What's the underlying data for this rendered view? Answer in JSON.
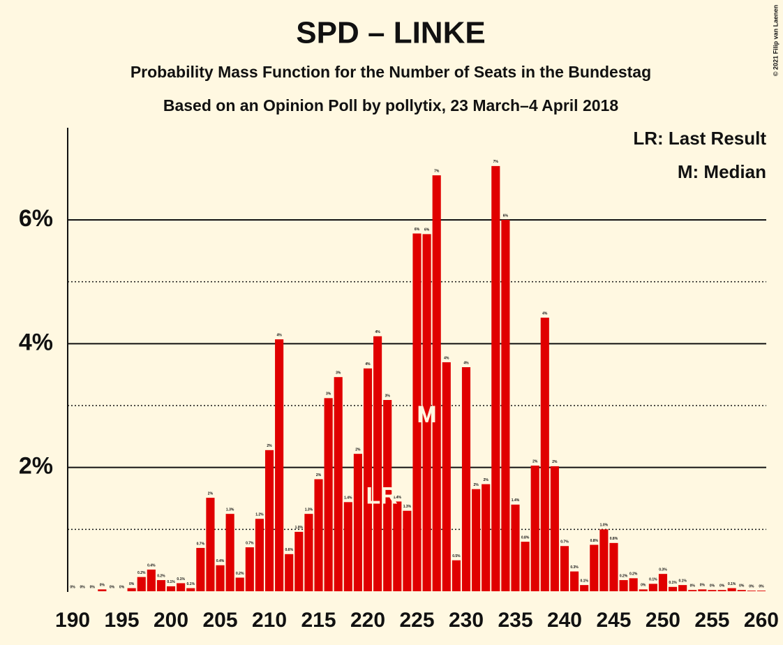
{
  "chart_data": {
    "type": "bar",
    "title": "SPD – LINKE",
    "subtitle": "Probability Mass Function for the Number of Seats in the Bundestag",
    "subtitle2": "Based on an Opinion Poll by pollytix, 23 March–4 April 2018",
    "copyright": "© 2021 Filip van Laenen",
    "legend": [
      "LR: Last Result",
      "M: Median"
    ],
    "color": "#e00000",
    "x": [
      190,
      191,
      192,
      193,
      194,
      195,
      196,
      197,
      198,
      199,
      200,
      201,
      202,
      203,
      204,
      205,
      206,
      207,
      208,
      209,
      210,
      211,
      212,
      213,
      214,
      215,
      216,
      217,
      218,
      219,
      220,
      221,
      222,
      223,
      224,
      225,
      226,
      227,
      228,
      229,
      230,
      231,
      232,
      233,
      234,
      235,
      236,
      237,
      238,
      239,
      240,
      241,
      242,
      243,
      244,
      245,
      246,
      247,
      248,
      249,
      250,
      251,
      252,
      253,
      254,
      255,
      256,
      257,
      258,
      259,
      260
    ],
    "values": [
      0,
      0,
      0,
      0.03,
      0,
      0,
      0.05,
      0.23,
      0.35,
      0.18,
      0.08,
      0.13,
      0.05,
      0.7,
      1.51,
      0.42,
      1.25,
      0.22,
      0.71,
      1.17,
      2.28,
      4.07,
      0.6,
      0.96,
      1.25,
      1.81,
      3.12,
      3.46,
      1.44,
      2.22,
      3.6,
      4.12,
      3.09,
      1.45,
      1.3,
      5.78,
      5.77,
      6.72,
      3.7,
      0.5,
      3.62,
      1.65,
      1.73,
      6.87,
      6.0,
      1.4,
      0.8,
      2.03,
      4.42,
      2.02,
      0.73,
      0.32,
      0.1,
      0.75,
      1.0,
      0.78,
      0.18,
      0.21,
      0.03,
      0.12,
      0.28,
      0.07,
      0.1,
      0.02,
      0.03,
      0.02,
      0.02,
      0.05,
      0.02,
      0.01,
      0.01
    ],
    "value_labels": [
      "0%",
      "0%",
      "0%",
      "0%",
      "0%",
      "0%",
      "0%",
      "0.2%",
      "0.4%",
      "0.2%",
      "0.1%",
      "0.1%",
      "0.1%",
      "0.7%",
      "2%",
      "0.4%",
      "1.3%",
      "0.2%",
      "0.7%",
      "1.2%",
      "2%",
      "4%",
      "0.6%",
      "1.0%",
      "1.3%",
      "2%",
      "3%",
      "3%",
      "1.4%",
      "2%",
      "4%",
      "4%",
      "3%",
      "1.4%",
      "1.3%",
      "6%",
      "6%",
      "7%",
      "4%",
      "0.5%",
      "4%",
      "2%",
      "2%",
      "7%",
      "6%",
      "1.4%",
      "0.8%",
      "2%",
      "4%",
      "2%",
      "0.7%",
      "0.3%",
      "0.1%",
      "0.8%",
      "1.0%",
      "0.8%",
      "0.2%",
      "0.2%",
      "0%",
      "0.1%",
      "0.3%",
      "0.1%",
      "0.1%",
      "0%",
      "0%",
      "0%",
      "0%",
      "0.1%",
      "0%",
      "0%",
      "0%"
    ],
    "xlim": [
      189.5,
      260.5
    ],
    "xticks": [
      190,
      195,
      200,
      205,
      210,
      215,
      220,
      225,
      230,
      235,
      240,
      245,
      250,
      255,
      260
    ],
    "ylim": [
      0,
      7.5
    ],
    "yticks": [
      {
        "value": 2,
        "label": "2%"
      },
      {
        "value": 4,
        "label": "4%"
      },
      {
        "value": 6,
        "label": "6%"
      }
    ],
    "minor_yticks": [
      1,
      3,
      5
    ],
    "grid": true,
    "last_result": {
      "x": 221,
      "label": "LR"
    },
    "median": {
      "x": 226,
      "label": "M"
    }
  }
}
